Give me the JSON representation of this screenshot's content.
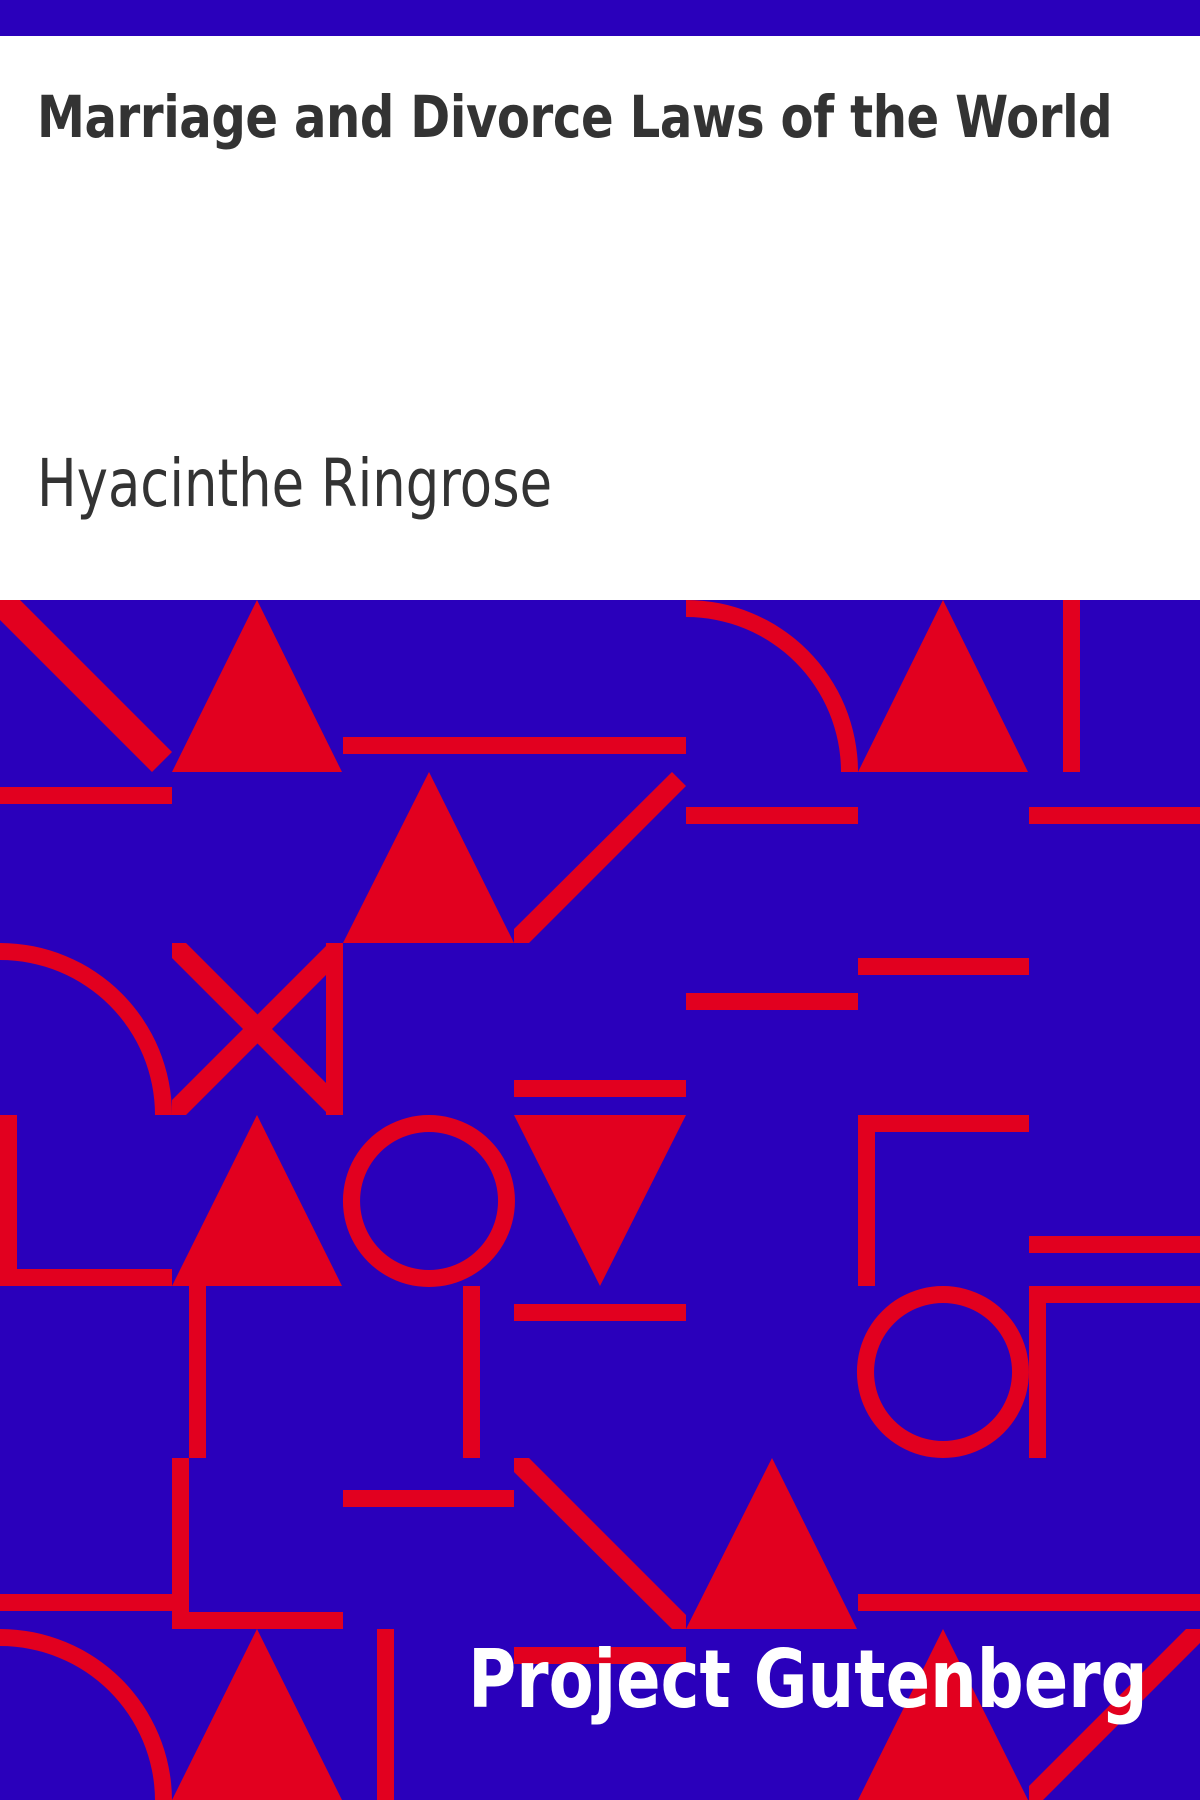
{
  "cover": {
    "title": "Marriage and Divorce Laws of the World",
    "author": "Hyacinthe Ringrose",
    "publisher": "Project Gutenberg"
  },
  "colors": {
    "background_blue": "#2a00bb",
    "pattern_red": "#e2001f",
    "text_dark": "#333333",
    "text_light": "#ffffff"
  },
  "pattern": {
    "description_icon": "geometric-pattern-icon"
  }
}
